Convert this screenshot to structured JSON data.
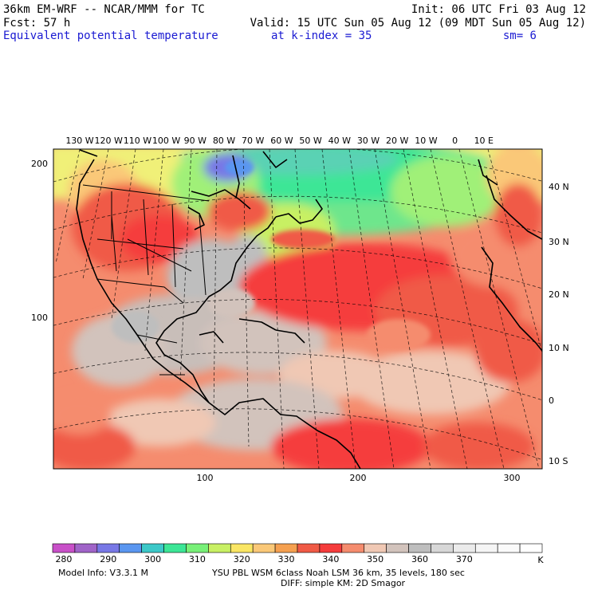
{
  "header": {
    "line1_left": "36km EM-WRF -- NCAR/MMM for TC",
    "line1_right": "Init: 06 UTC Fri 03 Aug 12",
    "line2_left": "Fcst:   57 h",
    "line2_right": "Valid: 15 UTC Sun 05 Aug 12 (09 MDT Sun 05 Aug 12)",
    "line3_field": "Equivalent potential temperature",
    "line3_level": "at k-index =  35",
    "line3_sm": "sm= 6"
  },
  "map": {
    "longitude_labels": [
      "130 W",
      "120 W",
      "110 W",
      "100 W",
      "90 W",
      "80 W",
      "70 W",
      "60 W",
      "50 W",
      "40 W",
      "30 W",
      "20 W",
      "10 W",
      "0",
      "10 E"
    ],
    "latitude_labels": [
      "40 N",
      "30 N",
      "20 N",
      "10 N",
      "0",
      "10 S"
    ],
    "left_grid_labels": [
      "200",
      "100"
    ],
    "bottom_grid_labels": [
      "100",
      "200",
      "300"
    ]
  },
  "colorbar": {
    "colors": [
      "#c850c8",
      "#a064c8",
      "#7878e6",
      "#5a96f0",
      "#3cc8c8",
      "#3ce696",
      "#78f078",
      "#c8f064",
      "#fae664",
      "#fac878",
      "#f5a050",
      "#f05a46",
      "#f53c3c",
      "#f58c6e",
      "#f0c8b4",
      "#d2c3bc",
      "#bebebe",
      "#d7d7d7",
      "#ebebeb",
      "#f5f5f5",
      "#fafafa",
      "#ffffff"
    ],
    "tick_labels": [
      "280",
      "290",
      "300",
      "310",
      "320",
      "330",
      "340",
      "350",
      "360",
      "370"
    ],
    "unit": "K"
  },
  "footer": {
    "model_info": "Model Info: V3.3.1 M",
    "physics": "YSU PBL  WSM 6class  Noah LSM  36 km,   35 levels,  180 sec",
    "diffusion": "DIFF: simple KM: 2D Smagor"
  }
}
